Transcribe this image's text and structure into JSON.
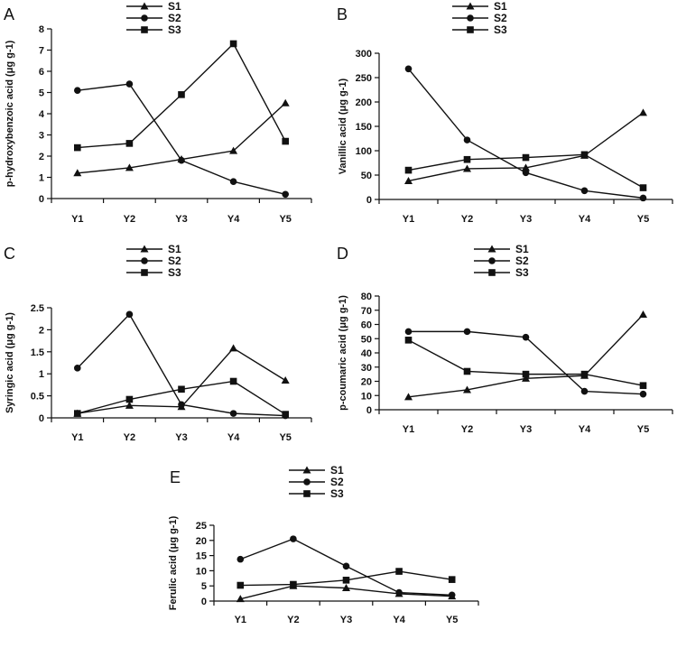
{
  "chart_data": [
    {
      "type": "line",
      "panel": "A",
      "ylabel": "p-hydroxybenzoic acid (μg g-1)",
      "categories": [
        "Y1",
        "Y2",
        "Y3",
        "Y4",
        "Y5"
      ],
      "ylim": [
        0,
        8
      ],
      "yticks": [
        0,
        1,
        2,
        3,
        4,
        5,
        6,
        7,
        8
      ],
      "legend_position": "top",
      "series": [
        {
          "name": "S1",
          "marker": "triangle",
          "values": [
            1.2,
            1.45,
            1.85,
            2.25,
            4.5
          ]
        },
        {
          "name": "S2",
          "marker": "circle",
          "values": [
            5.1,
            5.4,
            1.8,
            0.8,
            0.2
          ]
        },
        {
          "name": "S3",
          "marker": "square",
          "values": [
            2.4,
            2.6,
            4.9,
            7.3,
            2.7
          ]
        }
      ]
    },
    {
      "type": "line",
      "panel": "B",
      "ylabel": "Vanillic acid (μg g-1)",
      "categories": [
        "Y1",
        "Y2",
        "Y3",
        "Y4",
        "Y5"
      ],
      "ylim": [
        0,
        300
      ],
      "yticks": [
        0,
        50,
        100,
        150,
        200,
        250,
        300
      ],
      "legend_position": "top",
      "series": [
        {
          "name": "S1",
          "marker": "triangle",
          "values": [
            38,
            63,
            65,
            90,
            178
          ]
        },
        {
          "name": "S2",
          "marker": "circle",
          "values": [
            268,
            122,
            55,
            18,
            3
          ]
        },
        {
          "name": "S3",
          "marker": "square",
          "values": [
            60,
            82,
            86,
            92,
            24
          ]
        }
      ]
    },
    {
      "type": "line",
      "panel": "C",
      "ylabel": "Syringic acid (μg g-1)",
      "categories": [
        "Y1",
        "Y2",
        "Y3",
        "Y4",
        "Y5"
      ],
      "ylim": [
        0,
        2.5
      ],
      "yticks": [
        0,
        0.5,
        1,
        1.5,
        2,
        2.5
      ],
      "legend_position": "top",
      "series": [
        {
          "name": "S1",
          "marker": "triangle",
          "values": [
            0.1,
            0.28,
            0.25,
            1.58,
            0.85
          ]
        },
        {
          "name": "S2",
          "marker": "circle",
          "values": [
            1.13,
            2.35,
            0.3,
            0.1,
            0.05
          ]
        },
        {
          "name": "S3",
          "marker": "square",
          "values": [
            0.1,
            0.42,
            0.65,
            0.83,
            0.08
          ]
        }
      ]
    },
    {
      "type": "line",
      "panel": "D",
      "ylabel": "p-coumaric acid (μg g-1)",
      "categories": [
        "Y1",
        "Y2",
        "Y3",
        "Y4",
        "Y5"
      ],
      "ylim": [
        0,
        80
      ],
      "yticks": [
        0,
        10,
        20,
        30,
        40,
        50,
        60,
        70,
        80
      ],
      "legend_position": "top",
      "series": [
        {
          "name": "S1",
          "marker": "triangle",
          "values": [
            9,
            14,
            22,
            24,
            67
          ]
        },
        {
          "name": "S2",
          "marker": "circle",
          "values": [
            55,
            55,
            51,
            13,
            11
          ]
        },
        {
          "name": "S3",
          "marker": "square",
          "values": [
            49,
            27,
            25,
            25,
            17
          ]
        }
      ]
    },
    {
      "type": "line",
      "panel": "E",
      "ylabel": "Ferulic acid (μg g-1)",
      "categories": [
        "Y1",
        "Y2",
        "Y3",
        "Y4",
        "Y5"
      ],
      "ylim": [
        0,
        25
      ],
      "yticks": [
        0,
        5,
        10,
        15,
        20,
        25
      ],
      "legend_position": "top",
      "series": [
        {
          "name": "S1",
          "marker": "triangle",
          "values": [
            0.7,
            5.0,
            4.3,
            2.4,
            1.6
          ]
        },
        {
          "name": "S2",
          "marker": "circle",
          "values": [
            13.8,
            20.5,
            11.5,
            2.8,
            2.0
          ]
        },
        {
          "name": "S3",
          "marker": "square",
          "values": [
            5.2,
            5.5,
            6.9,
            9.8,
            7.1
          ]
        }
      ]
    }
  ]
}
